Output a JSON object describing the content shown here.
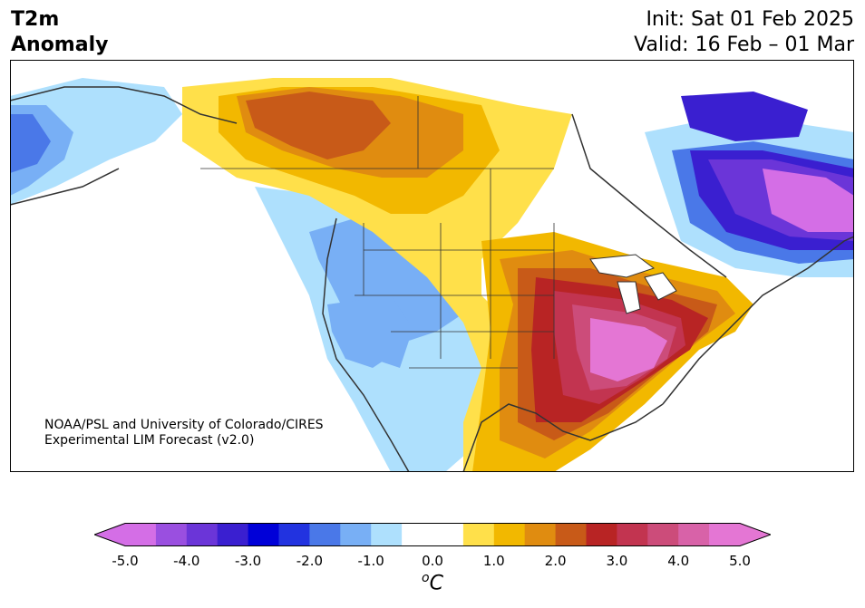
{
  "header": {
    "title_line1": "T2m",
    "title_line2": "Anomaly",
    "init": "Init: Sat 01 Feb 2025",
    "valid": "Valid: 16 Feb – 01 Mar"
  },
  "credit": {
    "line1": "NOAA/PSL and University of Colorado/CIRES",
    "line2": "Experimental LIM Forecast (v2.0)"
  },
  "colorbar": {
    "unit_base": "C",
    "unit_sup": "o",
    "tick_labels": [
      "-5.0",
      "-4.0",
      "-3.0",
      "-2.0",
      "-1.0",
      "0.0",
      "1.0",
      "2.0",
      "3.0",
      "4.0",
      "5.0"
    ],
    "colors": [
      "#d46ee6",
      "#9a4fe0",
      "#6b35d8",
      "#3a1fd0",
      "#0000d8",
      "#2233e0",
      "#4a78e8",
      "#78aff5",
      "#aee0fd",
      "#ffffff",
      "#ffffff",
      "#ffe04a",
      "#f2b800",
      "#e08c10",
      "#c85a18",
      "#b82424",
      "#c23450",
      "#cc4c7a",
      "#d862a8",
      "#e476d4"
    ],
    "under_color": "#d46ee6",
    "over_color": "#e476d4"
  }
}
